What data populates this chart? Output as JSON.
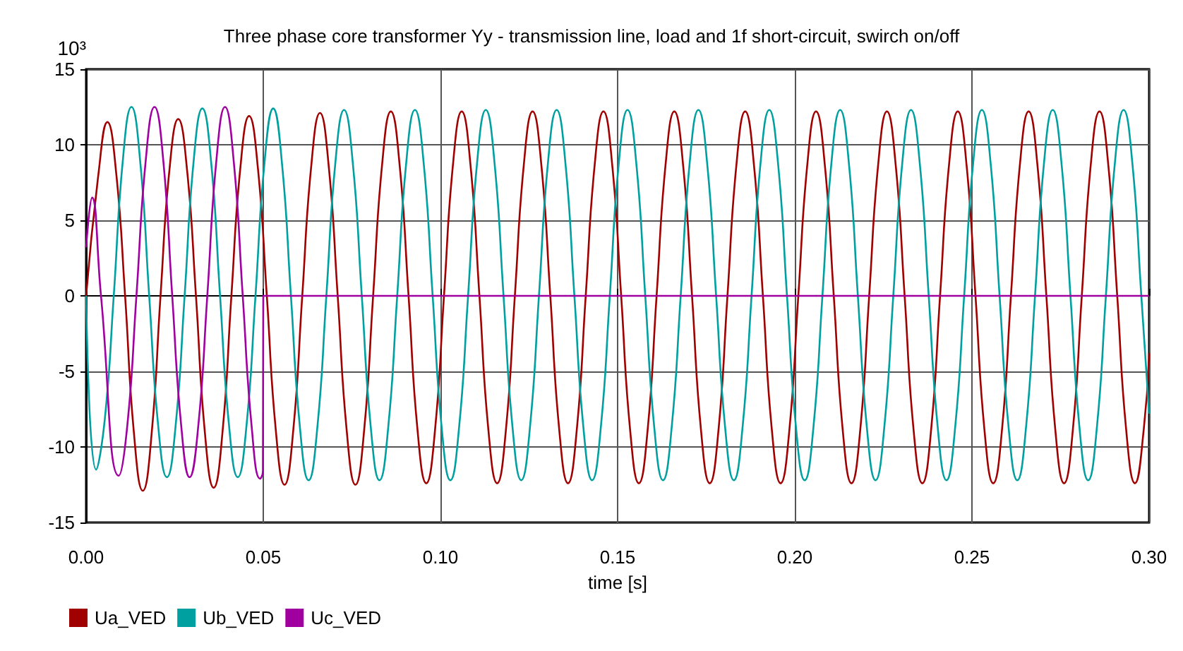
{
  "chart_data": {
    "type": "line",
    "title": "Three phase core transformer Yy - transmission line, load and 1f short-circuit, swirch on/off",
    "xlabel": "time [s]",
    "ylabel": "10³",
    "xlim": [
      0,
      0.3
    ],
    "xticks": [
      {
        "value": 0,
        "label": "0.00"
      },
      {
        "value": 0.05,
        "label": "0.05"
      },
      {
        "value": 0.1,
        "label": "0.10"
      },
      {
        "value": 0.15,
        "label": "0.15"
      },
      {
        "value": 0.2,
        "label": "0.20"
      },
      {
        "value": 0.25,
        "label": "0.25"
      },
      {
        "value": 0.3,
        "label": "0.30"
      }
    ],
    "ylim": [
      -15,
      15
    ],
    "yticks": [
      -15,
      -10,
      -5,
      0,
      5,
      10,
      15
    ],
    "grid": true,
    "legend": "bottom left",
    "marker": "none",
    "line_style": "solid",
    "series": [
      {
        "name": "Ua_VED",
        "color": "#a00000",
        "x": [
          0,
          0.0035,
          0.006,
          0.0085,
          0.011,
          0.0135,
          0.016,
          0.0185,
          0.021,
          0.0235,
          0.026,
          0.0285,
          0.031,
          0.0335,
          0.036,
          0.0385,
          0.041,
          0.0435,
          0.046,
          0.0485,
          0.051,
          0.0535,
          0.056,
          0.0585,
          0.061,
          0.0635,
          0.066,
          0.0685,
          0.071,
          0.0735,
          0.076,
          0.0785,
          0.081,
          0.0835,
          0.086,
          0.0885,
          0.091,
          0.0935,
          0.096,
          0.0985,
          0.101,
          0.1035,
          0.106,
          0.1085,
          0.111,
          0.1135,
          0.116,
          0.1185,
          0.121,
          0.1235,
          0.126,
          0.1285,
          0.131,
          0.1335,
          0.136,
          0.1385,
          0.141,
          0.1435,
          0.146,
          0.1485,
          0.151,
          0.1535,
          0.156,
          0.1585,
          0.161,
          0.1635,
          0.166,
          0.1685,
          0.171,
          0.1735,
          0.176,
          0.1785,
          0.181,
          0.1835,
          0.186,
          0.1885,
          0.191,
          0.1935,
          0.196,
          0.1985,
          0.201,
          0.2035,
          0.206,
          0.2085,
          0.211,
          0.2135,
          0.216,
          0.2185,
          0.221,
          0.2235,
          0.226,
          0.2285,
          0.231,
          0.2335,
          0.236,
          0.2385,
          0.241,
          0.2435,
          0.246,
          0.2485,
          0.251,
          0.2535,
          0.256,
          0.2585,
          0.261,
          0.2635,
          0.266,
          0.2685,
          0.271,
          0.2735,
          0.276,
          0.2785,
          0.281,
          0.2835,
          0.286,
          0.2885,
          0.291,
          0.2935,
          0.296,
          0.2985,
          0.3
        ],
        "values": [
          0,
          8.1,
          11.5,
          8.1,
          0,
          -9.1,
          -12.9,
          -9.1,
          0,
          8.3,
          11.7,
          8.3,
          0,
          -9.0,
          -12.7,
          -9.0,
          0,
          8.4,
          11.9,
          8.4,
          0,
          -8.8,
          -12.5,
          -8.8,
          0,
          8.5,
          12.1,
          8.5,
          0,
          -8.8,
          -12.5,
          -8.8,
          0,
          8.6,
          12.2,
          8.6,
          0,
          -8.8,
          -12.4,
          -8.8,
          0,
          8.6,
          12.2,
          8.6,
          0,
          -8.8,
          -12.4,
          -8.8,
          0,
          8.6,
          12.2,
          8.6,
          0,
          -8.8,
          -12.4,
          -8.8,
          0,
          8.6,
          12.2,
          8.6,
          0,
          -8.8,
          -12.4,
          -8.8,
          0,
          8.6,
          12.2,
          8.6,
          0,
          -8.8,
          -12.4,
          -8.8,
          0,
          8.6,
          12.2,
          8.6,
          0,
          -8.8,
          -12.4,
          -8.8,
          0,
          8.6,
          12.2,
          8.6,
          0,
          -8.8,
          -12.4,
          -8.8,
          0,
          8.6,
          12.2,
          8.6,
          0,
          -8.8,
          -12.4,
          -8.8,
          0,
          8.6,
          12.2,
          8.6,
          0,
          -8.8,
          -12.4,
          -8.8,
          0,
          8.6,
          12.2,
          8.6,
          0,
          -8.8,
          -12.4,
          -8.8,
          0,
          8.6,
          12.2,
          8.6,
          0,
          -8.8,
          -12.4,
          -8.8,
          -3.8
        ]
      },
      {
        "name": "Ub_VED",
        "color": "#00a0a0",
        "x": [
          0,
          0.0028,
          0.0053,
          0.0078,
          0.0103,
          0.0128,
          0.0153,
          0.0178,
          0.0203,
          0.0228,
          0.0253,
          0.0278,
          0.0303,
          0.0328,
          0.0353,
          0.0378,
          0.0403,
          0.0428,
          0.0453,
          0.0478,
          0.0503,
          0.0528,
          0.0553,
          0.0578,
          0.0603,
          0.0628,
          0.0653,
          0.0678,
          0.0703,
          0.0728,
          0.0753,
          0.0778,
          0.0803,
          0.0828,
          0.0853,
          0.0878,
          0.0903,
          0.0928,
          0.0953,
          0.0978,
          0.1003,
          0.1028,
          0.1053,
          0.1078,
          0.1103,
          0.1128,
          0.1153,
          0.1178,
          0.1203,
          0.1228,
          0.1253,
          0.1278,
          0.1303,
          0.1328,
          0.1353,
          0.1378,
          0.1403,
          0.1428,
          0.1453,
          0.1478,
          0.1503,
          0.1528,
          0.1553,
          0.1578,
          0.1603,
          0.1628,
          0.1653,
          0.1678,
          0.1703,
          0.1728,
          0.1753,
          0.1778,
          0.1803,
          0.1828,
          0.1853,
          0.1878,
          0.1903,
          0.1928,
          0.1953,
          0.1978,
          0.2003,
          0.2028,
          0.2053,
          0.2078,
          0.2103,
          0.2128,
          0.2153,
          0.2178,
          0.2203,
          0.2228,
          0.2253,
          0.2278,
          0.2303,
          0.2328,
          0.2353,
          0.2378,
          0.2403,
          0.2428,
          0.2453,
          0.2478,
          0.2503,
          0.2528,
          0.2553,
          0.2578,
          0.2603,
          0.2628,
          0.2653,
          0.2678,
          0.2703,
          0.2728,
          0.2753,
          0.2778,
          0.2803,
          0.2828,
          0.2853,
          0.2878,
          0.2903,
          0.2928,
          0.2953,
          0.2978,
          0.3
        ],
        "values": [
          0,
          -11.5,
          -8.1,
          0,
          8.8,
          12.5,
          8.8,
          0,
          -8.5,
          -12.0,
          -8.5,
          0,
          8.8,
          12.4,
          8.8,
          0,
          -8.5,
          -12.0,
          -8.5,
          0,
          8.7,
          12.4,
          8.7,
          0,
          -8.6,
          -12.2,
          -8.6,
          0,
          8.7,
          12.3,
          8.7,
          0,
          -8.6,
          -12.2,
          -8.6,
          0,
          8.7,
          12.3,
          8.7,
          0,
          -8.6,
          -12.2,
          -8.6,
          0,
          8.7,
          12.3,
          8.7,
          0,
          -8.6,
          -12.2,
          -8.6,
          0,
          8.7,
          12.3,
          8.7,
          0,
          -8.6,
          -12.2,
          -8.6,
          0,
          8.7,
          12.3,
          8.7,
          0,
          -8.6,
          -12.2,
          -8.6,
          0,
          8.7,
          12.3,
          8.7,
          0,
          -8.6,
          -12.2,
          -8.6,
          0,
          8.7,
          12.3,
          8.7,
          0,
          -8.6,
          -12.2,
          -8.6,
          0,
          8.7,
          12.3,
          8.7,
          0,
          -8.6,
          -12.2,
          -8.6,
          0,
          8.7,
          12.3,
          8.7,
          0,
          -8.6,
          -12.2,
          -8.6,
          0,
          8.7,
          12.3,
          8.7,
          0,
          -8.6,
          -12.2,
          -8.6,
          0,
          8.7,
          12.3,
          8.7,
          0,
          -8.6,
          -12.2,
          -8.6,
          0,
          8.7,
          12.3,
          8.7,
          0,
          -7.8
        ]
      },
      {
        "name": "Uc_VED",
        "color": "#a000a0",
        "x": [
          0,
          0.0017,
          0.0042,
          0.0092,
          0.0117,
          0.0142,
          0.0168,
          0.0193,
          0.0218,
          0.0243,
          0.0268,
          0.0292,
          0.0317,
          0.0342,
          0.0367,
          0.0392,
          0.0417,
          0.0442,
          0.0467,
          0.0491,
          0.0499,
          0.05,
          0.3
        ],
        "values": [
          3.2,
          6.5,
          0,
          -11.9,
          -8.4,
          0,
          8.9,
          12.5,
          8.9,
          0,
          -8.5,
          -12.0,
          -8.5,
          0,
          8.8,
          12.5,
          8.8,
          0,
          -8.6,
          -12.1,
          -11.6,
          0,
          0
        ]
      }
    ]
  }
}
